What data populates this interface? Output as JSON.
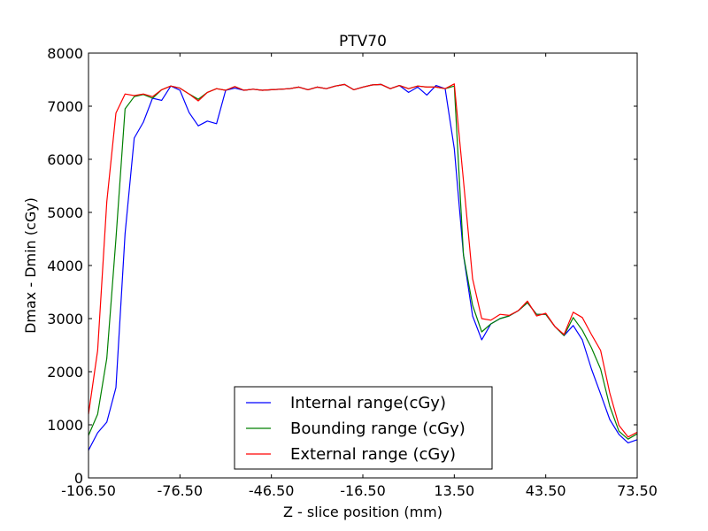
{
  "chart_data": {
    "type": "line",
    "title": "PTV70",
    "xlabel": "Z - slice position (mm)",
    "ylabel": "Dmax - Dmin (cGy)",
    "xlim": [
      -106.5,
      73.5
    ],
    "ylim": [
      0,
      8000
    ],
    "xticks": [
      -106.5,
      -76.5,
      -46.5,
      -16.5,
      13.5,
      43.5,
      73.5
    ],
    "xtick_labels": [
      "-106.50",
      "-76.50",
      "-46.50",
      "-16.50",
      "13.50",
      "43.50",
      "73.50"
    ],
    "yticks": [
      0,
      1000,
      2000,
      3000,
      4000,
      5000,
      6000,
      7000,
      8000
    ],
    "ytick_labels": [
      "0",
      "1000",
      "2000",
      "3000",
      "4000",
      "5000",
      "6000",
      "7000",
      "8000"
    ],
    "grid": false,
    "legend_position": "bottom-center",
    "x": [
      -106.5,
      -103.5,
      -100.5,
      -97.5,
      -94.5,
      -91.5,
      -88.5,
      -85.5,
      -82.5,
      -79.5,
      -76.5,
      -73.5,
      -70.5,
      -67.5,
      -64.5,
      -61.5,
      -58.5,
      -55.5,
      -52.5,
      -49.5,
      -46.5,
      -43.5,
      -40.5,
      -37.5,
      -34.5,
      -31.5,
      -28.5,
      -25.5,
      -22.5,
      -19.5,
      -16.5,
      -13.5,
      -10.5,
      -7.5,
      -4.5,
      -1.5,
      1.5,
      4.5,
      7.5,
      10.5,
      13.5,
      16.5,
      19.5,
      22.5,
      25.5,
      28.5,
      31.5,
      34.5,
      37.5,
      40.5,
      43.5,
      46.5,
      49.5,
      52.5,
      55.5,
      58.5,
      61.5,
      64.5,
      67.5,
      70.5,
      73.5
    ],
    "series": [
      {
        "name": "Internal range(cGy)",
        "color": "#0000ff",
        "values": [
          520,
          850,
          1050,
          1700,
          4600,
          6400,
          6700,
          7150,
          7110,
          7380,
          7300,
          6880,
          6630,
          6720,
          6670,
          7300,
          7340,
          7300,
          7320,
          7300,
          7310,
          7320,
          7330,
          7360,
          7310,
          7360,
          7330,
          7380,
          7410,
          7310,
          7360,
          7400,
          7410,
          7330,
          7390,
          7260,
          7360,
          7210,
          7390,
          7330,
          6200,
          4200,
          3050,
          2600,
          2900,
          3000,
          3050,
          3150,
          3300,
          3080,
          3080,
          2850,
          2680,
          2870,
          2600,
          2050,
          1580,
          1100,
          820,
          660,
          720
        ]
      },
      {
        "name": "Bounding range (cGy)",
        "color": "#008000",
        "values": [
          800,
          1200,
          2250,
          4500,
          6950,
          7180,
          7220,
          7150,
          7310,
          7380,
          7340,
          7230,
          7130,
          7260,
          7330,
          7300,
          7370,
          7300,
          7320,
          7300,
          7310,
          7320,
          7330,
          7360,
          7310,
          7360,
          7330,
          7380,
          7410,
          7310,
          7360,
          7400,
          7410,
          7330,
          7390,
          7330,
          7380,
          7360,
          7360,
          7330,
          7380,
          4200,
          3250,
          2750,
          2900,
          3000,
          3050,
          3150,
          3300,
          3080,
          3080,
          2850,
          2680,
          3020,
          2780,
          2450,
          2050,
          1350,
          880,
          730,
          830
        ]
      },
      {
        "name": "External range (cGy)",
        "color": "#ff0000",
        "values": [
          1200,
          2400,
          5200,
          6870,
          7230,
          7200,
          7230,
          7180,
          7310,
          7380,
          7340,
          7230,
          7100,
          7260,
          7330,
          7300,
          7370,
          7300,
          7320,
          7300,
          7310,
          7320,
          7330,
          7360,
          7310,
          7360,
          7330,
          7380,
          7410,
          7310,
          7360,
          7400,
          7410,
          7330,
          7390,
          7330,
          7380,
          7360,
          7360,
          7330,
          7420,
          5600,
          3750,
          3000,
          2970,
          3080,
          3060,
          3150,
          3330,
          3050,
          3100,
          2850,
          2700,
          3120,
          3020,
          2700,
          2400,
          1600,
          990,
          770,
          860
        ]
      }
    ]
  }
}
